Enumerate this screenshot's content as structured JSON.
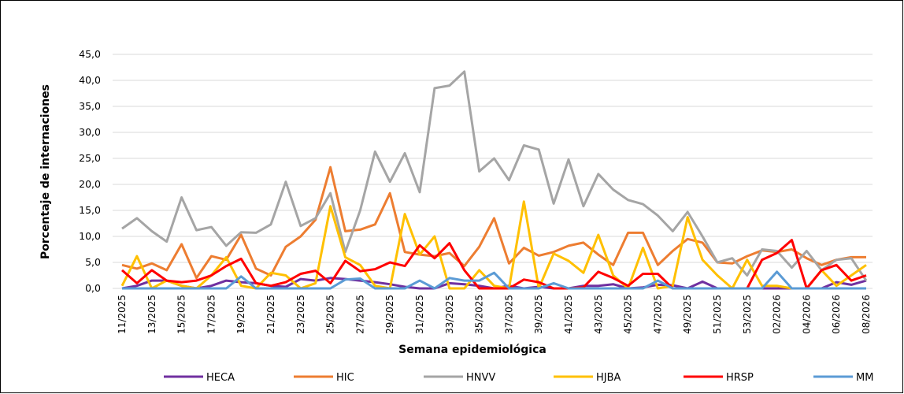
{
  "chart_data": {
    "type": "line",
    "x_label": "Semana epidemiológica",
    "y_label": "Porcentaje de internaciones",
    "categories": [
      "11/2025",
      null,
      "13/2025",
      null,
      "15/2025",
      null,
      "17/2025",
      null,
      "19/2025",
      null,
      "21/2025",
      null,
      "23/2025",
      null,
      "25/2025",
      null,
      "27/2025",
      null,
      "29/2025",
      null,
      "31/2025",
      null,
      "33/2025",
      null,
      "35/2025",
      null,
      "37/2025",
      null,
      "39/2025",
      null,
      "41/2025",
      null,
      "43/2025",
      null,
      "45/2025",
      null,
      "47/2025",
      null,
      "49/2025",
      null,
      "51/2025",
      null,
      "53/2025",
      null,
      "02/2026",
      null,
      "04/2026",
      null,
      "06/2026",
      null,
      "08/2026"
    ],
    "ylim": [
      0,
      45
    ],
    "yticks": [
      {
        "value": 0,
        "label": "0,0"
      },
      {
        "value": 5,
        "label": "5,0"
      },
      {
        "value": 10,
        "label": "10,0"
      },
      {
        "value": 15,
        "label": "15,0"
      },
      {
        "value": 20,
        "label": "20,0"
      },
      {
        "value": 25,
        "label": "25,0"
      },
      {
        "value": 30,
        "label": "30,0"
      },
      {
        "value": 35,
        "label": "35,0"
      },
      {
        "value": 40,
        "label": "40,0"
      },
      {
        "value": 45,
        "label": "45,0"
      }
    ],
    "grid": true,
    "legend": "bottom",
    "series": [
      {
        "name": "HECA",
        "color": "#7030a0",
        "values": [
          0,
          0.5,
          1.5,
          1.5,
          0.5,
          0,
          0.5,
          1.5,
          1.2,
          1,
          0.5,
          0.3,
          1.8,
          1.5,
          2,
          1.8,
          1.5,
          1.2,
          0.8,
          0.3,
          0,
          0,
          1,
          0.8,
          0.5,
          0,
          0.5,
          0,
          0.3,
          0,
          0,
          0.5,
          0.5,
          0.8,
          0,
          0.2,
          0.7,
          0.6,
          0,
          1.3,
          0,
          0,
          0,
          0,
          0,
          0,
          0,
          0,
          1.2,
          0.7,
          1.5
        ]
      },
      {
        "name": "HIC",
        "color": "#ed7d31",
        "values": [
          4.5,
          3.8,
          4.8,
          3.5,
          8.5,
          2,
          6.2,
          5.5,
          10.3,
          3.8,
          2.5,
          8,
          10,
          13.2,
          23.3,
          11,
          11.3,
          12.3,
          18.3,
          7,
          6.5,
          6.2,
          6.8,
          4.3,
          8,
          13.5,
          4.8,
          7.8,
          6.3,
          7,
          8.2,
          8.8,
          6.5,
          4.5,
          10.7,
          10.7,
          4.5,
          7.2,
          9.5,
          8.8,
          5,
          4.8,
          6.2,
          7.3,
          7,
          7.5,
          5.8,
          4.5,
          5.5,
          6,
          6
        ]
      },
      {
        "name": "HNVV",
        "color": "#a5a5a5",
        "values": [
          11.5,
          13.5,
          11,
          9,
          17.5,
          11.2,
          11.8,
          8.2,
          10.8,
          10.7,
          12.3,
          20.5,
          12,
          13.5,
          18.3,
          7,
          15,
          26.3,
          20.5,
          26,
          18.5,
          38.5,
          39,
          41.7,
          22.5,
          25,
          20.8,
          27.5,
          26.7,
          16.3,
          24.8,
          15.8,
          22,
          19,
          17,
          16.2,
          14,
          11,
          14.7,
          10,
          5,
          5.8,
          2.5,
          7.5,
          7.2,
          4,
          7.2,
          3.5,
          5.5,
          5.8,
          1.5
        ]
      },
      {
        "name": "HJBA",
        "color": "#ffc000",
        "values": [
          0.5,
          6.2,
          0,
          1.5,
          0.5,
          0,
          2.5,
          6,
          0.5,
          0,
          3,
          2.5,
          0,
          1,
          15.8,
          6,
          4.5,
          0.5,
          0,
          14.3,
          6.5,
          10,
          0,
          0,
          3.5,
          0.5,
          0,
          16.7,
          0,
          6.7,
          5.3,
          3,
          10.3,
          2.5,
          0,
          7.8,
          0,
          0.5,
          13.7,
          5.5,
          2.5,
          0,
          5.5,
          0.5,
          0.5,
          0,
          0,
          3.5,
          0.5,
          2.5,
          4.5
        ]
      },
      {
        "name": "HRSP",
        "color": "#ff0000",
        "values": [
          3.5,
          1,
          3.5,
          1.5,
          1.2,
          1.5,
          2.5,
          4.3,
          5.7,
          1,
          0.5,
          1.2,
          2.8,
          3.4,
          1,
          5.3,
          3.3,
          3.7,
          5,
          4.3,
          8.3,
          5.8,
          8.7,
          3.5,
          0,
          0,
          0,
          1.7,
          1.2,
          0,
          0,
          0.2,
          3.2,
          2,
          0.5,
          2.8,
          2.8,
          0,
          0,
          0,
          0,
          0,
          0,
          5.5,
          6.8,
          9.3,
          0,
          3.5,
          4.5,
          1.5,
          2.5
        ]
      },
      {
        "name": "MM",
        "color": "#5b9bd5",
        "values": [
          0,
          0,
          0,
          0,
          0,
          0,
          0,
          0,
          2.3,
          0,
          0,
          0,
          0,
          0,
          0,
          1.7,
          1.9,
          0,
          0,
          0,
          1.5,
          0,
          2,
          1.5,
          1.5,
          3,
          0,
          0,
          0,
          1,
          0,
          0,
          0,
          0,
          0,
          0,
          1.5,
          0,
          0,
          0,
          0,
          0,
          0,
          0,
          3.2,
          0,
          0,
          0,
          0,
          0,
          0
        ]
      }
    ]
  }
}
